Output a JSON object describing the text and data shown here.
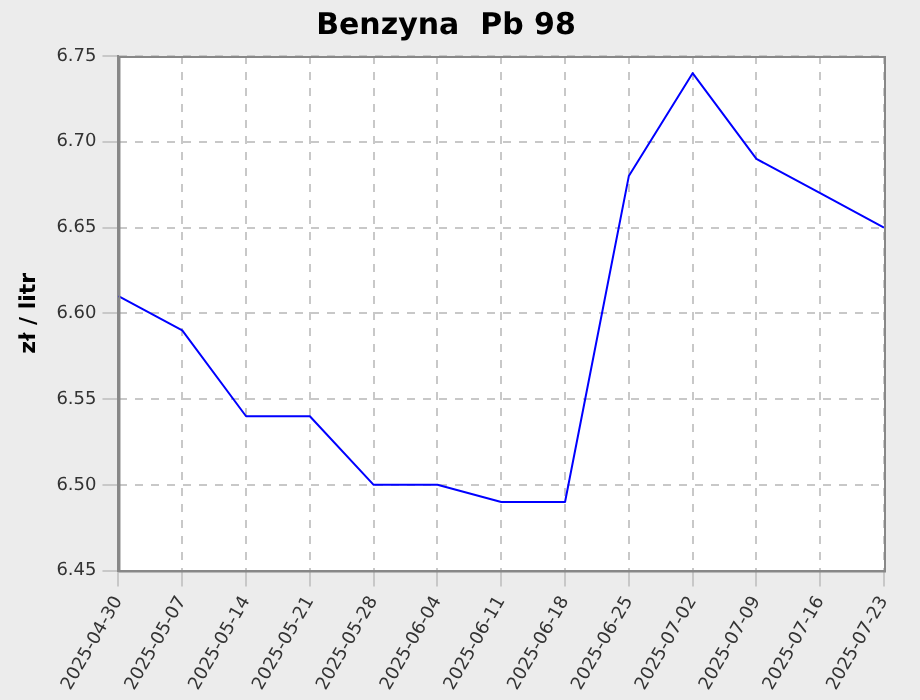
{
  "chart_data": {
    "type": "line",
    "title": "Benzyna  Pb 98",
    "ylabel": "zł / litr",
    "categories": [
      "2025-04-30",
      "2025-05-07",
      "2025-05-14",
      "2025-05-21",
      "2025-05-28",
      "2025-06-04",
      "2025-06-11",
      "2025-06-18",
      "2025-06-25",
      "2025-07-02",
      "2025-07-09",
      "2025-07-16",
      "2025-07-23"
    ],
    "series": [
      {
        "color": "#0000ff",
        "values": [
          6.61,
          6.59,
          6.54,
          6.54,
          6.5,
          6.5,
          6.49,
          6.49,
          6.68,
          6.74,
          6.69,
          6.67,
          6.65
        ]
      }
    ],
    "ylim": [
      6.45,
      6.75
    ],
    "yticks": [
      6.45,
      {
        "value": 6.5,
        "label": "6.50"
      },
      6.55,
      {
        "value": 6.6,
        "label": "6.60"
      },
      6.65,
      {
        "value": 6.7,
        "label": "6.70"
      },
      6.75
    ],
    "grid": true,
    "marker": "none",
    "line_style": "solid",
    "legend": false
  }
}
